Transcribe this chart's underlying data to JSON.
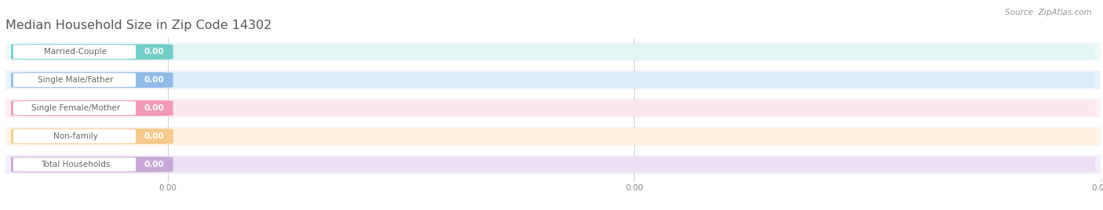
{
  "title": "Median Household Size in Zip Code 14302",
  "source": "Source: ZipAtlas.com",
  "categories": [
    "Married-Couple",
    "Single Male/Father",
    "Single Female/Mother",
    "Non-family",
    "Total Households"
  ],
  "values": [
    0.0,
    0.0,
    0.0,
    0.0,
    0.0
  ],
  "bar_colors": [
    "#72cdc9",
    "#90bbe8",
    "#f09ab5",
    "#f5c98a",
    "#c8a8d8"
  ],
  "bar_bg_colors": [
    "#e0f5f4",
    "#dceef9",
    "#fde6ed",
    "#fdf0dc",
    "#ede0f5"
  ],
  "row_bg_colors": [
    "#eff9f8",
    "#eaf3fb",
    "#fdf0f4",
    "#fdf5ea",
    "#f5edfb"
  ],
  "text_color": "#666666",
  "title_color": "#555555",
  "source_color": "#999999",
  "background_color": "#ffffff",
  "figsize": [
    14.06,
    2.68
  ],
  "dpi": 100,
  "title_fontsize": 11.5,
  "label_fontsize": 7.5,
  "value_fontsize": 7.5,
  "tick_fontsize": 7.5,
  "source_fontsize": 7.5
}
